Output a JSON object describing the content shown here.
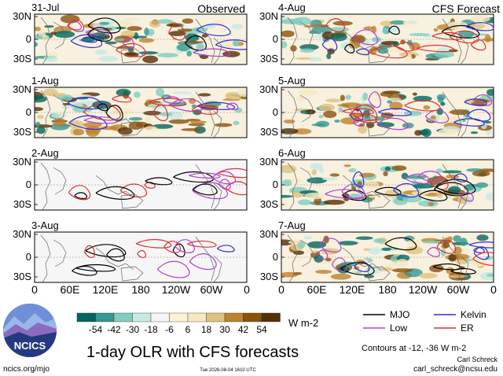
{
  "chart_data": [
    {
      "type": "heatmap",
      "title": "1-day OLR with CFS forecasts",
      "column_titles": [
        "Observed",
        "CFS Forecast"
      ],
      "panels": [
        {
          "column": "Observed",
          "date": "31-Jul",
          "shading": true
        },
        {
          "column": "Observed",
          "date": "1-Aug",
          "shading": true
        },
        {
          "column": "Observed",
          "date": "2-Aug",
          "shading": false
        },
        {
          "column": "Observed",
          "date": "3-Aug",
          "shading": false
        },
        {
          "column": "CFS Forecast",
          "date": "4-Aug",
          "shading": true
        },
        {
          "column": "CFS Forecast",
          "date": "5-Aug",
          "shading": true
        },
        {
          "column": "CFS Forecast",
          "date": "6-Aug",
          "shading": true
        },
        {
          "column": "CFS Forecast",
          "date": "7-Aug",
          "shading": true
        }
      ],
      "y_ticks": [
        "30N",
        "0",
        "30S"
      ],
      "x_ticks": [
        "0",
        "60E",
        "120E",
        "180",
        "120W",
        "60W",
        "0"
      ],
      "colorbar": {
        "ticks": [
          "-54",
          "-42",
          "-30",
          "-18",
          "-6",
          "6",
          "18",
          "30",
          "42",
          "54"
        ],
        "units": "W m-2",
        "colors": [
          "#01665e",
          "#35978f",
          "#80cdc1",
          "#c7eae5",
          "#f5f5f5",
          "#fdf2d6",
          "#f6e8c3",
          "#dfc27d",
          "#bf812d",
          "#8c510a",
          "#543005"
        ]
      },
      "legend": [
        {
          "name": "MJO",
          "color": "#000000"
        },
        {
          "name": "Kelvin",
          "color": "#2b2bd8"
        },
        {
          "name": "Low",
          "color": "#b040d0"
        },
        {
          "name": "ER",
          "color": "#e03030"
        }
      ],
      "contour_note": "Contours at -12, -36 W m-2"
    }
  ],
  "footer": {
    "logo_text": "NCICS",
    "url": "ncics.org/mjo",
    "timestamp": "Tue 2026-08-04 1610 UTC",
    "author": "Carl Schreck",
    "email": "carl_schreck@ncsu.edu"
  }
}
